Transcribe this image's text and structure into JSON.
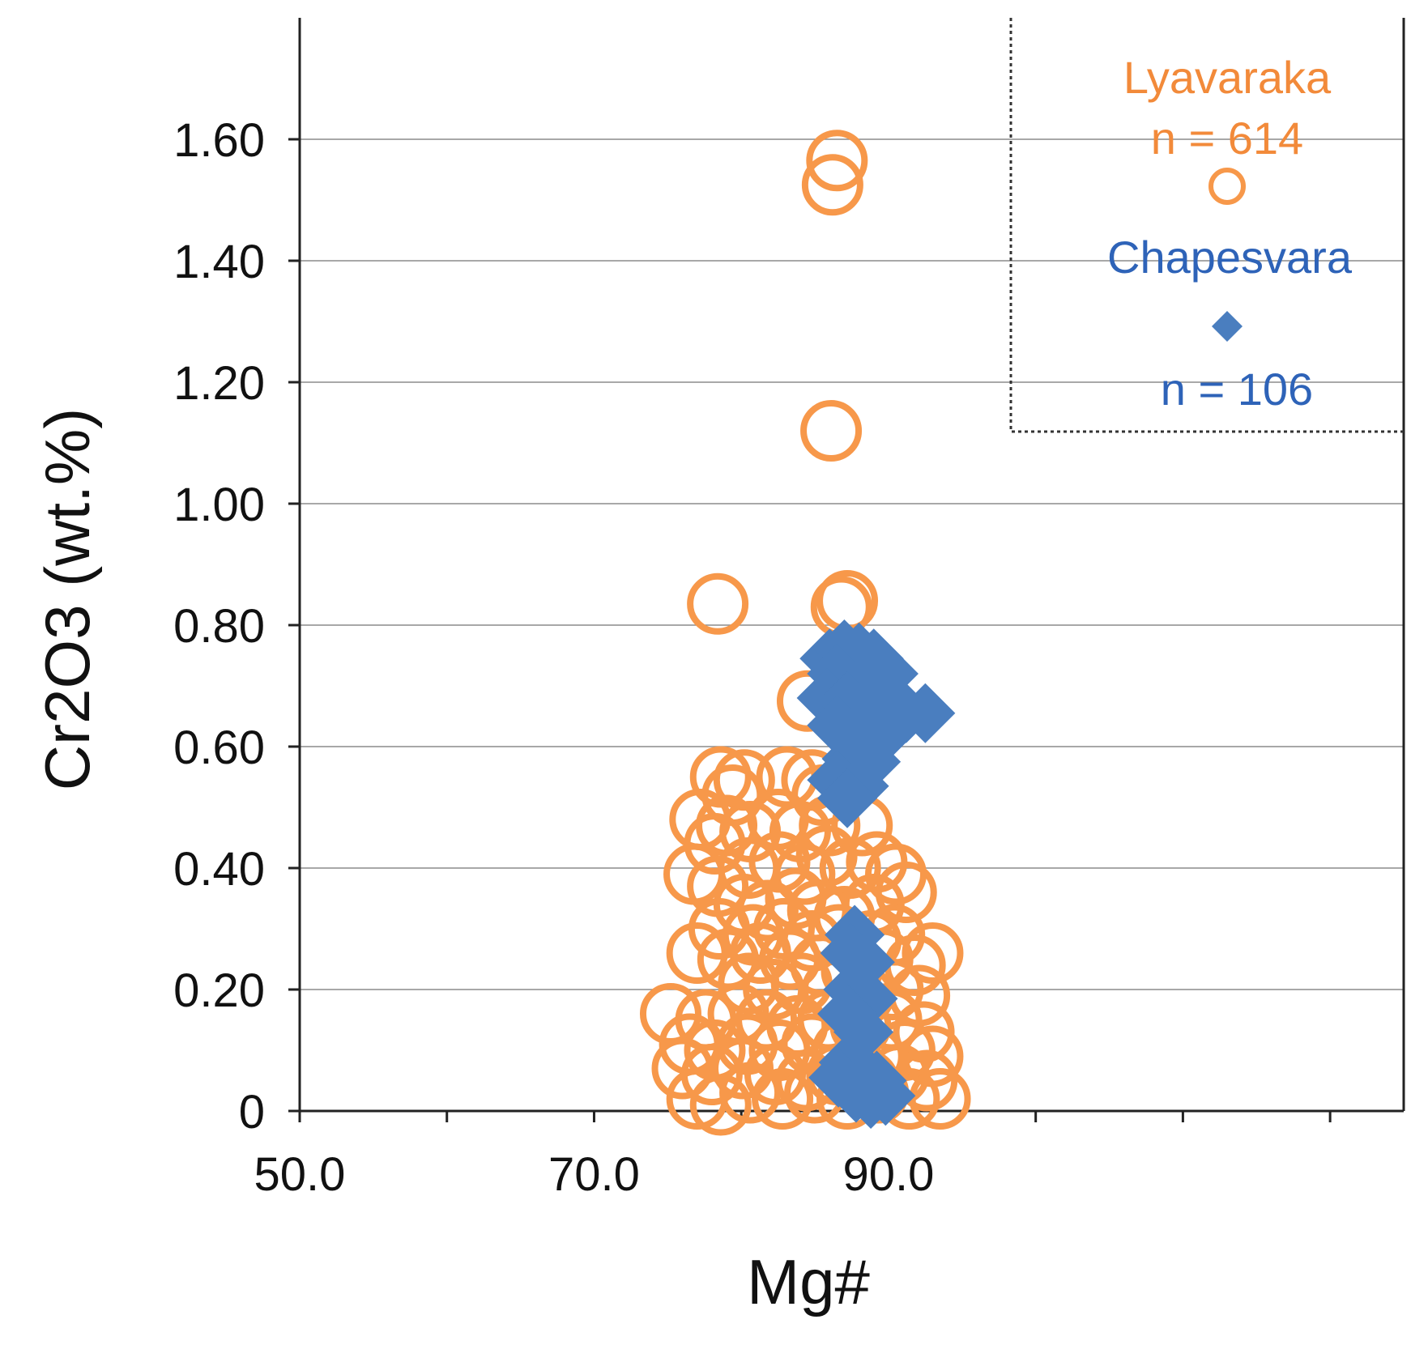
{
  "chart_data": {
    "type": "scatter",
    "title": "",
    "xlabel": "Mg#",
    "ylabel": "Cr2O3 (wt.%)",
    "xlim": [
      50,
      125
    ],
    "ylim": [
      0,
      1.8
    ],
    "x_ticks": [
      50,
      70,
      90
    ],
    "x_tick_labels": [
      "50.0",
      "70.0",
      "90.0"
    ],
    "y_ticks": [
      0,
      0.2,
      0.4,
      0.6,
      0.8,
      1.0,
      1.2,
      1.4,
      1.6
    ],
    "y_tick_labels": [
      "0",
      "0.20",
      "0.40",
      "0.60",
      "0.80",
      "1.00",
      "1.20",
      "1.40",
      "1.60"
    ],
    "grid": true,
    "legend_position": "top-right",
    "colors": {
      "lyavaraka": "#f7984a",
      "chapesvara": "#4a7ebf",
      "lyavaraka_text": "#f28a3a",
      "chapesvara_text": "#2e63b8"
    },
    "legend": {
      "lyavaraka_name": "Lyavaraka",
      "lyavaraka_count": "n = 614",
      "chapesvara_name": "Chapesvara",
      "chapesvara_count": "n = 106"
    },
    "series": [
      {
        "name": "Lyavaraka",
        "marker": "open-circle",
        "points": [
          [
            86.5,
            1.565
          ],
          [
            86.2,
            1.525
          ],
          [
            86.1,
            1.12
          ],
          [
            78.4,
            0.835
          ],
          [
            87.2,
            0.84
          ],
          [
            86.8,
            0.83
          ],
          [
            84.5,
            0.675
          ],
          [
            78.6,
            0.55
          ],
          [
            80.2,
            0.545
          ],
          [
            79.4,
            0.52
          ],
          [
            83.1,
            0.55
          ],
          [
            84.8,
            0.545
          ],
          [
            85.5,
            0.52
          ],
          [
            77.2,
            0.48
          ],
          [
            79.0,
            0.47
          ],
          [
            78.2,
            0.44
          ],
          [
            80.6,
            0.46
          ],
          [
            82.5,
            0.48
          ],
          [
            84.0,
            0.46
          ],
          [
            86.0,
            0.47
          ],
          [
            88.2,
            0.47
          ],
          [
            76.8,
            0.39
          ],
          [
            78.4,
            0.37
          ],
          [
            80.5,
            0.4
          ],
          [
            82.6,
            0.41
          ],
          [
            84.3,
            0.39
          ],
          [
            85.8,
            0.42
          ],
          [
            87.4,
            0.4
          ],
          [
            89.2,
            0.41
          ],
          [
            90.5,
            0.39
          ],
          [
            91.2,
            0.36
          ],
          [
            80.2,
            0.34
          ],
          [
            81.8,
            0.33
          ],
          [
            83.7,
            0.35
          ],
          [
            85.2,
            0.33
          ],
          [
            87.0,
            0.32
          ],
          [
            89.0,
            0.34
          ],
          [
            78.5,
            0.3
          ],
          [
            80.8,
            0.29
          ],
          [
            82.9,
            0.3
          ],
          [
            84.8,
            0.28
          ],
          [
            86.6,
            0.29
          ],
          [
            88.8,
            0.28
          ],
          [
            90.4,
            0.29
          ],
          [
            77.0,
            0.26
          ],
          [
            79.1,
            0.25
          ],
          [
            81.3,
            0.26
          ],
          [
            83.3,
            0.25
          ],
          [
            85.4,
            0.24
          ],
          [
            87.5,
            0.23
          ],
          [
            89.6,
            0.25
          ],
          [
            91.8,
            0.24
          ],
          [
            93.0,
            0.26
          ],
          [
            80.5,
            0.21
          ],
          [
            82.2,
            0.2
          ],
          [
            84.1,
            0.21
          ],
          [
            86.2,
            0.2
          ],
          [
            88.3,
            0.19
          ],
          [
            90.3,
            0.2
          ],
          [
            92.1,
            0.19
          ],
          [
            75.2,
            0.16
          ],
          [
            77.6,
            0.15
          ],
          [
            79.8,
            0.16
          ],
          [
            81.7,
            0.15
          ],
          [
            83.8,
            0.14
          ],
          [
            85.9,
            0.15
          ],
          [
            88.1,
            0.14
          ],
          [
            90.2,
            0.15
          ],
          [
            92.4,
            0.13
          ],
          [
            76.5,
            0.11
          ],
          [
            78.2,
            0.1
          ],
          [
            80.4,
            0.11
          ],
          [
            82.6,
            0.1
          ],
          [
            84.8,
            0.11
          ],
          [
            86.9,
            0.1
          ],
          [
            89.0,
            0.09
          ],
          [
            91.1,
            0.1
          ],
          [
            93.0,
            0.09
          ],
          [
            76.0,
            0.07
          ],
          [
            78.0,
            0.06
          ],
          [
            80.1,
            0.07
          ],
          [
            82.3,
            0.06
          ],
          [
            84.4,
            0.05
          ],
          [
            86.5,
            0.06
          ],
          [
            88.6,
            0.05
          ],
          [
            90.7,
            0.06
          ],
          [
            92.6,
            0.05
          ],
          [
            77.0,
            0.02
          ],
          [
            78.6,
            0.01
          ],
          [
            80.6,
            0.03
          ],
          [
            82.8,
            0.02
          ],
          [
            85.0,
            0.03
          ],
          [
            87.2,
            0.02
          ],
          [
            89.3,
            0.03
          ],
          [
            91.4,
            0.02
          ],
          [
            93.5,
            0.02
          ]
        ]
      },
      {
        "name": "Chapesvara",
        "marker": "filled-diamond",
        "points": [
          [
            86.0,
            0.745
          ],
          [
            87.0,
            0.76
          ],
          [
            88.0,
            0.755
          ],
          [
            89.0,
            0.745
          ],
          [
            86.5,
            0.72
          ],
          [
            88.5,
            0.71
          ],
          [
            90.0,
            0.72
          ],
          [
            85.8,
            0.68
          ],
          [
            87.2,
            0.675
          ],
          [
            88.6,
            0.67
          ],
          [
            89.8,
            0.665
          ],
          [
            92.5,
            0.655
          ],
          [
            91.2,
            0.655
          ],
          [
            86.5,
            0.635
          ],
          [
            88.0,
            0.625
          ],
          [
            89.5,
            0.615
          ],
          [
            87.5,
            0.58
          ],
          [
            88.8,
            0.575
          ],
          [
            86.5,
            0.545
          ],
          [
            88.0,
            0.535
          ],
          [
            87.2,
            0.515
          ],
          [
            87.7,
            0.29
          ],
          [
            87.4,
            0.26
          ],
          [
            88.4,
            0.245
          ],
          [
            87.6,
            0.2
          ],
          [
            88.6,
            0.185
          ],
          [
            87.2,
            0.16
          ],
          [
            88.3,
            0.13
          ],
          [
            87.3,
            0.08
          ],
          [
            88.2,
            0.065
          ],
          [
            86.6,
            0.055
          ],
          [
            89.2,
            0.05
          ],
          [
            87.8,
            0.03
          ],
          [
            88.8,
            0.02
          ],
          [
            89.8,
            0.025
          ]
        ]
      }
    ]
  }
}
